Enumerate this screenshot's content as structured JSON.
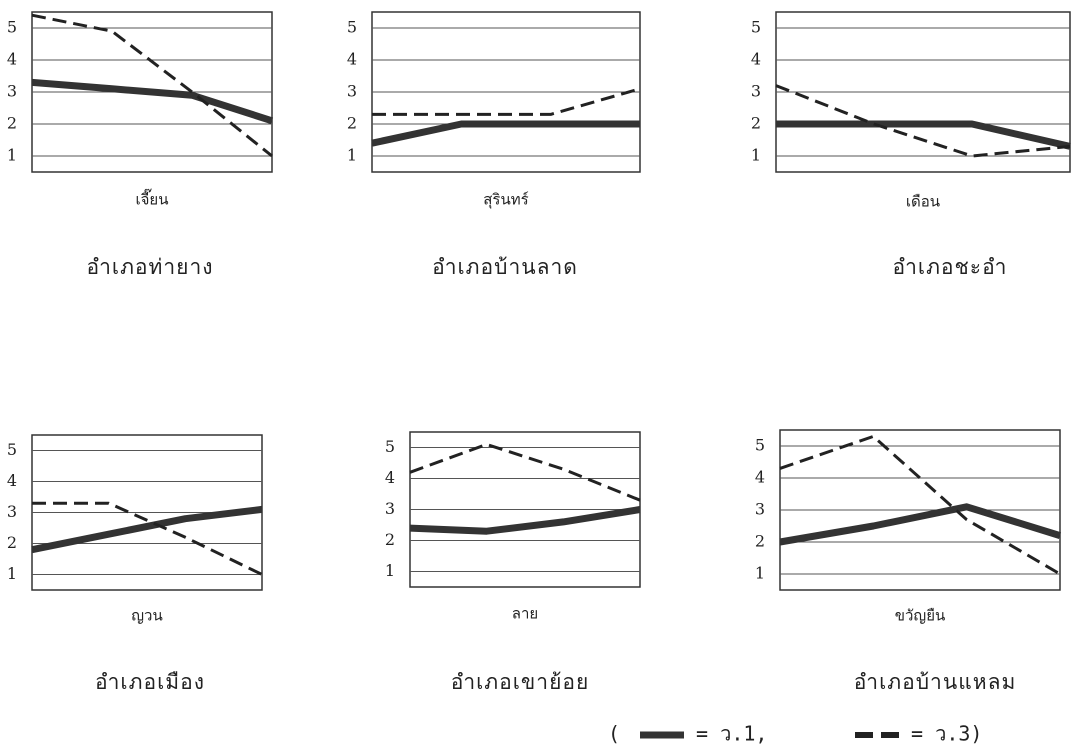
{
  "chart_data": [
    {
      "type": "line",
      "title": "อำเภอท่ายาง",
      "subtitle": "เจี๊ยน",
      "categories": [
        null,
        null,
        null,
        null
      ],
      "ylim": [
        0.5,
        5.5
      ],
      "yticks": [
        1,
        2,
        3,
        4,
        5
      ],
      "grid": true,
      "series": [
        {
          "color": "#333333",
          "style": "solid",
          "values": [
            3.3,
            3.1,
            2.9,
            2.1
          ]
        },
        {
          "color": "#222222",
          "style": "dashed",
          "values": [
            5.4,
            4.9,
            3.0,
            1.0
          ]
        }
      ]
    },
    {
      "type": "line",
      "title": "อำเภอบ้านลาด",
      "subtitle": "สุรินทร์",
      "categories": [
        null,
        null,
        null,
        null
      ],
      "ylim": [
        0.5,
        5.5
      ],
      "yticks": [
        1,
        2,
        3,
        4,
        5
      ],
      "grid": true,
      "series": [
        {
          "color": "#333333",
          "style": "solid",
          "values": [
            1.4,
            2.0,
            2.0,
            2.0
          ]
        },
        {
          "color": "#222222",
          "style": "dashed",
          "values": [
            2.3,
            2.3,
            2.3,
            3.1
          ]
        }
      ]
    },
    {
      "type": "line",
      "title": "อำเภอชะอำ",
      "subtitle": "เดือน",
      "categories": [
        null,
        null,
        null,
        null
      ],
      "ylim": [
        0.5,
        5.5
      ],
      "yticks": [
        1,
        2,
        3,
        4,
        5
      ],
      "grid": true,
      "series": [
        {
          "color": "#333333",
          "style": "solid",
          "values": [
            2.0,
            2.0,
            2.0,
            1.3
          ]
        },
        {
          "color": "#222222",
          "style": "dashed",
          "values": [
            3.2,
            2.0,
            1.0,
            1.3
          ]
        }
      ]
    },
    {
      "type": "line",
      "title": "อำเภอเมือง",
      "subtitle": "ญวน",
      "categories": [
        null,
        null,
        null,
        null
      ],
      "ylim": [
        0.5,
        5.5
      ],
      "yticks": [
        1,
        2,
        3,
        4,
        5
      ],
      "grid": true,
      "series": [
        {
          "color": "#333333",
          "style": "solid",
          "values": [
            1.8,
            2.3,
            2.8,
            3.1
          ]
        },
        {
          "color": "#222222",
          "style": "dashed",
          "values": [
            3.3,
            3.3,
            2.2,
            1.0
          ]
        }
      ]
    },
    {
      "type": "line",
      "title": "อำเภอเขาย้อย",
      "subtitle": "ลาย",
      "categories": [
        null,
        null,
        null,
        null
      ],
      "ylim": [
        0.5,
        5.5
      ],
      "yticks": [
        1,
        2,
        3,
        4,
        5
      ],
      "grid": true,
      "series": [
        {
          "color": "#333333",
          "style": "solid",
          "values": [
            2.4,
            2.3,
            2.6,
            3.0
          ]
        },
        {
          "color": "#222222",
          "style": "dashed",
          "values": [
            4.2,
            5.1,
            4.3,
            3.3
          ]
        }
      ]
    },
    {
      "type": "line",
      "title": "อำเภอบ้านแหลม",
      "subtitle": "ขวัญยืน",
      "categories": [
        null,
        null,
        null,
        null
      ],
      "ylim": [
        0.5,
        5.5
      ],
      "yticks": [
        1,
        2,
        3,
        4,
        5
      ],
      "grid": true,
      "series": [
        {
          "color": "#333333",
          "style": "solid",
          "values": [
            2.0,
            2.5,
            3.1,
            2.2
          ]
        },
        {
          "color": "#222222",
          "style": "dashed",
          "values": [
            4.3,
            5.3,
            2.7,
            1.0
          ]
        }
      ]
    }
  ],
  "legend": {
    "open": "(",
    "items": [
      {
        "label": "= ว.1,",
        "style": "solid",
        "color": "#333333"
      },
      {
        "label": "= ว.3)",
        "style": "dashed",
        "color": "#222222"
      }
    ]
  }
}
